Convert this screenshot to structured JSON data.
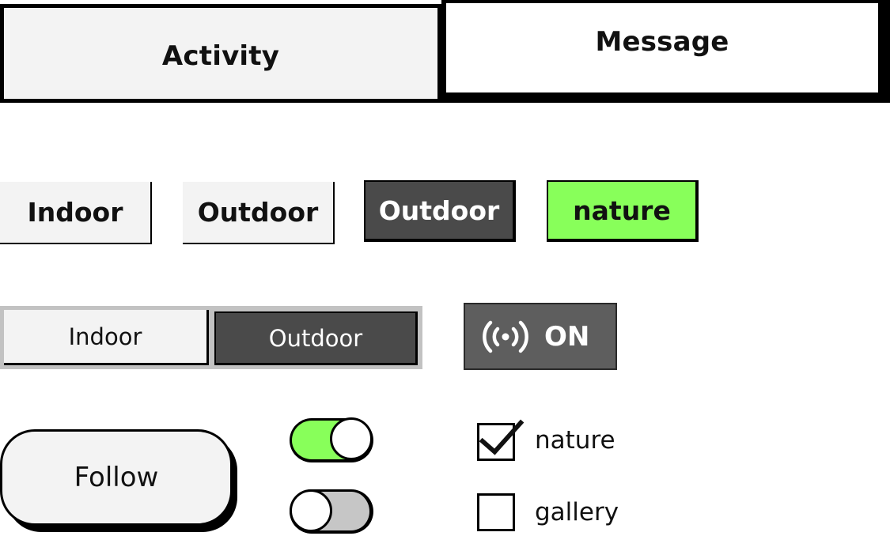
{
  "tabs": [
    {
      "label": "Activity",
      "selected": true
    },
    {
      "label": "Message",
      "selected": false
    }
  ],
  "chips": {
    "indoor": "Indoor",
    "outdoor_light": "Outdoor",
    "outdoor_dark": "Outdoor",
    "nature": "nature"
  },
  "segmented": {
    "options": [
      "Indoor",
      "Outdoor"
    ],
    "selected": "Outdoor"
  },
  "radio_button": {
    "icon": "broadcast-icon",
    "label": "ON"
  },
  "follow_button": {
    "label": "Follow"
  },
  "toggles": [
    {
      "state": "on"
    },
    {
      "state": "off"
    }
  ],
  "checkboxes": [
    {
      "label": "nature",
      "checked": true
    },
    {
      "label": "gallery",
      "checked": false
    }
  ],
  "colors": {
    "accent_green": "#88ff5a",
    "dark_gray": "#4a4a4a",
    "light_gray": "#f3f3f3",
    "toggle_off_gray": "#c6c6c6",
    "segment_frame": "#c2c2c2"
  }
}
